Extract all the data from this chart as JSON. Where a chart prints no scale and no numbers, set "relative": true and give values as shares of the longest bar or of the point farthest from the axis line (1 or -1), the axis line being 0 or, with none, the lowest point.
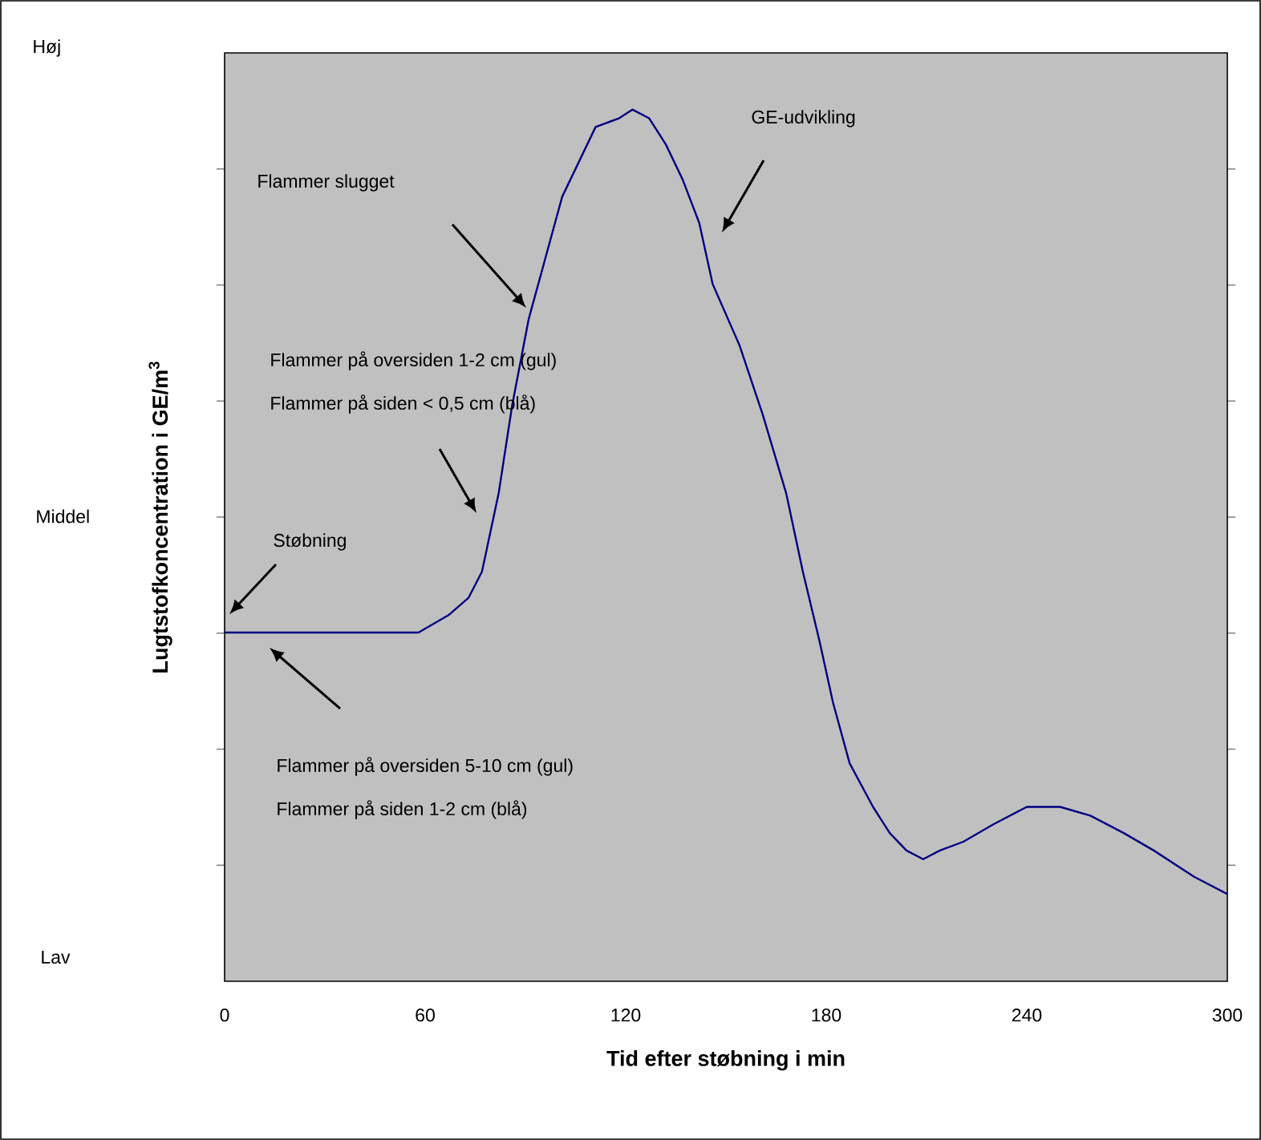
{
  "chart_data": {
    "type": "line",
    "relative": true,
    "xlabel": "Tid efter støbning i min",
    "ylabel": "Lugtstofkoncentration i GE/m$^{3}$",
    "x": [
      0,
      45,
      58,
      67,
      73,
      77,
      82,
      86,
      91,
      96,
      101,
      106,
      111,
      118,
      122,
      127,
      132,
      137,
      142,
      146,
      154,
      161,
      168,
      173,
      178,
      182,
      187,
      194,
      199,
      204,
      209,
      214,
      221,
      230,
      240,
      250,
      259,
      269,
      278,
      290,
      300
    ],
    "series": [
      {
        "color": "#000080",
        "values": [
          0.4,
          0.4,
          0.4,
          0.42,
          0.44,
          0.47,
          0.56,
          0.66,
          0.76,
          0.83,
          0.9,
          0.94,
          0.98,
          0.99,
          1.0,
          0.99,
          0.96,
          0.92,
          0.87,
          0.8,
          0.73,
          0.65,
          0.56,
          0.47,
          0.39,
          0.32,
          0.25,
          0.2,
          0.17,
          0.15,
          0.14,
          0.15,
          0.16,
          0.18,
          0.2,
          0.2,
          0.19,
          0.17,
          0.15,
          0.12,
          0.1
        ]
      }
    ],
    "xlim": [
      0,
      300
    ],
    "xticks": [
      0,
      60,
      120,
      180,
      240,
      300
    ],
    "annotations": [
      "Høj",
      "Middel",
      "Lav",
      "Støbning",
      "Flammer på oversiden 5-10 cm (gul)",
      "Flammer på siden 1-2 cm (blå)",
      "Flammer på oversiden 1-2 cm (gul)",
      "Flammer på siden < 0,5 cm (blå)",
      "Flammer slugget",
      "GE-udvikling"
    ]
  }
}
